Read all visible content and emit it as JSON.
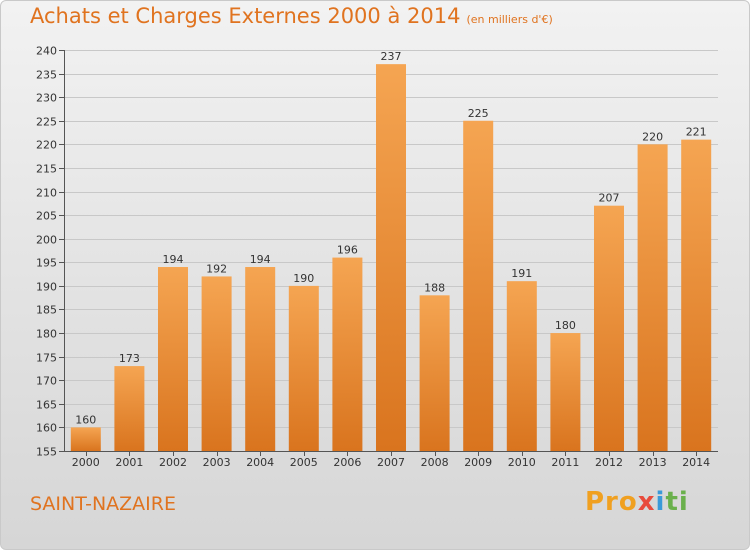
{
  "header": {
    "title": "Achats et Charges Externes 2000 à 2014",
    "subtitle": "(en milliers d'€)"
  },
  "footer": {
    "city": "SAINT-NAZAIRE",
    "logo": "Proxiti"
  },
  "colors": {
    "accent": "#e0731f",
    "bar_top": "#f5a552",
    "bar_bottom": "#d9741e"
  },
  "chart_data": {
    "type": "bar",
    "title": "Achats et Charges Externes 2000 à 2014",
    "subtitle": "(en milliers d'€)",
    "categories": [
      "2000",
      "2001",
      "2002",
      "2003",
      "2004",
      "2005",
      "2006",
      "2007",
      "2008",
      "2009",
      "2010",
      "2011",
      "2012",
      "2013",
      "2014"
    ],
    "values": [
      160,
      173,
      194,
      192,
      194,
      190,
      196,
      237,
      188,
      225,
      191,
      180,
      207,
      220,
      221
    ],
    "ylim": [
      155,
      240
    ],
    "yticks": [
      155,
      160,
      165,
      170,
      175,
      180,
      185,
      190,
      195,
      200,
      205,
      210,
      215,
      220,
      225,
      230,
      235,
      240
    ],
    "grid": true,
    "data_labels": true
  }
}
